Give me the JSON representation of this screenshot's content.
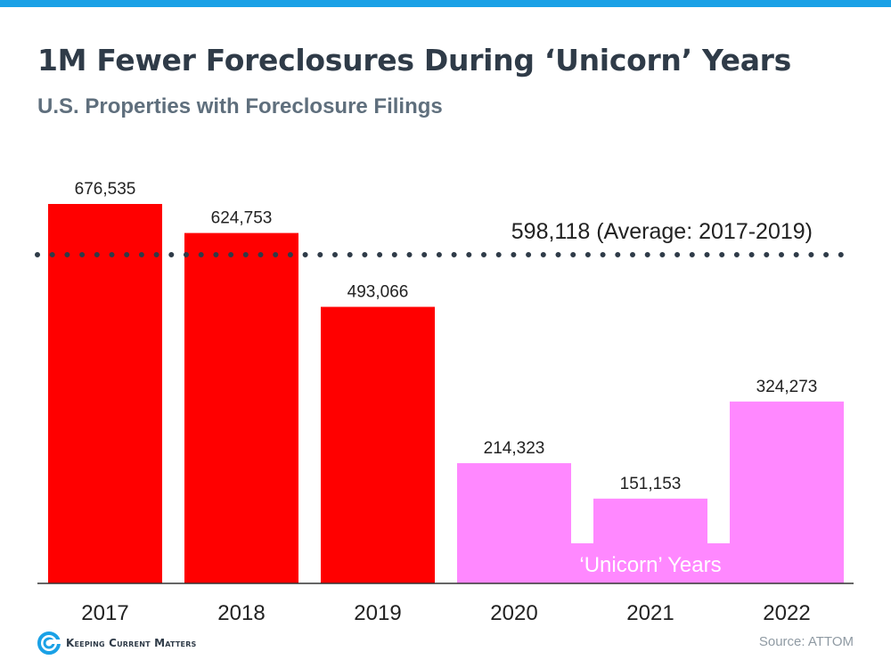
{
  "title": "1M Fewer Foreclosures During ‘Unicorn’ Years",
  "subtitle": "U.S. Properties with Foreclosure Filings",
  "chart_data": {
    "type": "bar",
    "categories": [
      "2017",
      "2018",
      "2019",
      "2020",
      "2021",
      "2022"
    ],
    "values": [
      676535,
      624753,
      493066,
      214323,
      151153,
      324273
    ],
    "value_labels": [
      "676,535",
      "624,753",
      "493,066",
      "214,323",
      "151,153",
      "324,273"
    ],
    "ylim": [
      0,
      800000
    ],
    "reference_line": {
      "value": 598118,
      "label": "598,118 (Average: 2017-2019)",
      "style": "dotted"
    },
    "highlight_band": {
      "label": "‘Unicorn’ Years",
      "categories": [
        "2020",
        "2021",
        "2022"
      ]
    },
    "colors": {
      "pre": "#ff0000",
      "unicorn": "#ff88ff",
      "axis": "#333333",
      "text": "#222222",
      "dots": "#2f3b48"
    },
    "grid": false,
    "xlabel": "",
    "ylabel": ""
  },
  "footer": {
    "logo_text": "Keeping Current Matters",
    "logo_icon": "kcm-swirl-icon",
    "source": "Source: ATTOM"
  },
  "colors": {
    "top_bar": "#1aa1e6",
    "title": "#2f3b48",
    "subtitle": "#5f6f7d"
  }
}
